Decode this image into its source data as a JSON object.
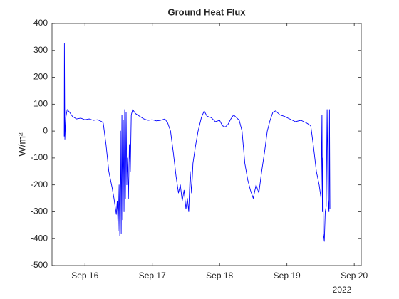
{
  "chart_data": {
    "type": "line",
    "title": "Ground Heat Flux",
    "ylabel": "W/m²",
    "x_offset_label": "2022",
    "x": [
      "2022-09-15T16:36",
      "2022-09-15T16:40",
      "2022-09-15T16:50",
      "2022-09-15T17:10",
      "2022-09-15T17:40",
      "2022-09-15T18:30",
      "2022-09-15T19:30",
      "2022-09-15T21:00",
      "2022-09-15T22:30",
      "2022-09-16T00:00",
      "2022-09-16T01:30",
      "2022-09-16T03:00",
      "2022-09-16T04:30",
      "2022-09-16T06:00",
      "2022-09-16T06:30",
      "2022-09-16T07:30",
      "2022-09-16T08:30",
      "2022-09-16T09:40",
      "2022-09-16T10:20",
      "2022-09-16T11:10",
      "2022-09-16T11:30",
      "2022-09-16T11:50",
      "2022-09-16T12:10",
      "2022-09-16T12:25",
      "2022-09-16T12:40",
      "2022-09-16T12:55",
      "2022-09-16T13:10",
      "2022-09-16T13:25",
      "2022-09-16T13:40",
      "2022-09-16T13:55",
      "2022-09-16T14:10",
      "2022-09-16T14:25",
      "2022-09-16T14:40",
      "2022-09-16T14:55",
      "2022-09-16T15:10",
      "2022-09-16T15:30",
      "2022-09-16T15:50",
      "2022-09-16T16:10",
      "2022-09-16T16:30",
      "2022-09-16T17:00",
      "2022-09-16T18:00",
      "2022-09-16T19:30",
      "2022-09-16T21:00",
      "2022-09-16T22:30",
      "2022-09-17T00:00",
      "2022-09-17T01:30",
      "2022-09-17T03:00",
      "2022-09-17T04:30",
      "2022-09-17T05:30",
      "2022-09-17T06:30",
      "2022-09-17T07:30",
      "2022-09-17T08:30",
      "2022-09-17T09:20",
      "2022-09-17T10:00",
      "2022-09-17T10:40",
      "2022-09-17T11:20",
      "2022-09-17T12:00",
      "2022-09-17T12:30",
      "2022-09-17T13:00",
      "2022-09-17T13:30",
      "2022-09-17T14:00",
      "2022-09-17T14:30",
      "2022-09-17T15:20",
      "2022-09-17T16:20",
      "2022-09-17T17:30",
      "2022-09-17T18:30",
      "2022-09-17T19:30",
      "2022-09-17T21:00",
      "2022-09-17T22:30",
      "2022-09-18T00:00",
      "2022-09-18T01:00",
      "2022-09-18T02:00",
      "2022-09-18T03:00",
      "2022-09-18T04:00",
      "2022-09-18T05:00",
      "2022-09-18T06:00",
      "2022-09-18T07:00",
      "2022-09-18T08:00",
      "2022-09-18T09:00",
      "2022-09-18T10:00",
      "2022-09-18T11:00",
      "2022-09-18T12:00",
      "2022-09-18T13:00",
      "2022-09-18T14:00",
      "2022-09-18T15:00",
      "2022-09-18T16:00",
      "2022-09-18T17:00",
      "2022-09-18T18:00",
      "2022-09-18T19:00",
      "2022-09-18T20:00",
      "2022-09-18T21:30",
      "2022-09-18T23:00",
      "2022-09-19T01:00",
      "2022-09-19T03:00",
      "2022-09-19T05:00",
      "2022-09-19T07:00",
      "2022-09-19T08:30",
      "2022-09-19T09:30",
      "2022-09-19T10:30",
      "2022-09-19T11:30",
      "2022-09-19T12:10",
      "2022-09-19T12:30",
      "2022-09-19T12:40",
      "2022-09-19T12:50",
      "2022-09-19T13:00",
      "2022-09-19T13:20",
      "2022-09-19T13:40",
      "2022-09-19T14:00",
      "2022-09-19T14:20",
      "2022-09-19T14:40",
      "2022-09-19T15:00",
      "2022-09-19T15:10",
      "2022-09-19T15:20"
    ],
    "series": [
      {
        "color": "#0000ff",
        "values": [
          -20,
          325,
          -30,
          50,
          80,
          70,
          55,
          45,
          48,
          42,
          45,
          40,
          42,
          35,
          30,
          -50,
          -150,
          -210,
          -250,
          -310,
          -260,
          -370,
          -200,
          -390,
          0,
          -380,
          60,
          -330,
          40,
          -300,
          80,
          -250,
          70,
          -200,
          -100,
          -250,
          -50,
          -150,
          60,
          80,
          65,
          55,
          45,
          40,
          42,
          38,
          40,
          45,
          30,
          0,
          -80,
          -170,
          -230,
          -200,
          -260,
          -220,
          -290,
          -250,
          -300,
          -150,
          -230,
          -120,
          -60,
          0,
          50,
          75,
          55,
          50,
          35,
          40,
          20,
          15,
          25,
          45,
          60,
          50,
          40,
          0,
          -120,
          -180,
          -220,
          -250,
          -200,
          -230,
          -150,
          -80,
          0,
          40,
          70,
          75,
          60,
          55,
          45,
          35,
          40,
          30,
          20,
          -60,
          -150,
          -200,
          -250,
          60,
          -300,
          -100,
          -380,
          -410,
          -300,
          -280,
          80,
          -250,
          -300,
          80,
          -290
        ]
      }
    ],
    "xlim": [
      "2022-09-15T12:15",
      "2022-09-20T02:30"
    ],
    "xticks": [
      {
        "value": "2022-09-16",
        "label": "Sep 16"
      },
      {
        "value": "2022-09-17",
        "label": "Sep 17"
      },
      {
        "value": "2022-09-18",
        "label": "Sep 18"
      },
      {
        "value": "2022-09-19",
        "label": "Sep 19"
      },
      {
        "value": "2022-09-20",
        "label": "Sep 20"
      }
    ],
    "ylim": [
      -500,
      400
    ],
    "yticks": [
      -500,
      -400,
      -300,
      -200,
      -100,
      0,
      100,
      200,
      300,
      400
    ],
    "grid": false
  }
}
